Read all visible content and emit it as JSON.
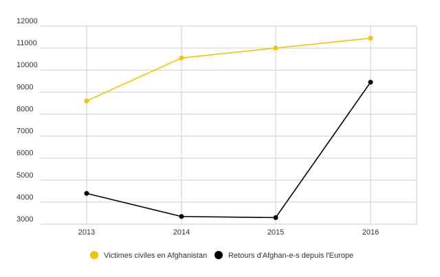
{
  "chart_data": {
    "type": "line",
    "x": [
      "2013",
      "2014",
      "2015",
      "2016"
    ],
    "ylim": [
      3000,
      12000
    ],
    "yticks": [
      3000,
      4000,
      5000,
      6000,
      7000,
      8000,
      9000,
      10000,
      11000,
      12000
    ],
    "grid": true,
    "legend_position": "bottom-center",
    "title": "",
    "xlabel": "",
    "ylabel": "",
    "series": [
      {
        "name": "Victimes civiles en Afghanistan",
        "color": "#f2c400",
        "values": [
          8600,
          10550,
          11000,
          11450
        ]
      },
      {
        "name": "Retours d'Afghan-e-s depuis l'Europe",
        "color": "#000000",
        "values": [
          4400,
          3350,
          3300,
          9450
        ]
      }
    ]
  }
}
